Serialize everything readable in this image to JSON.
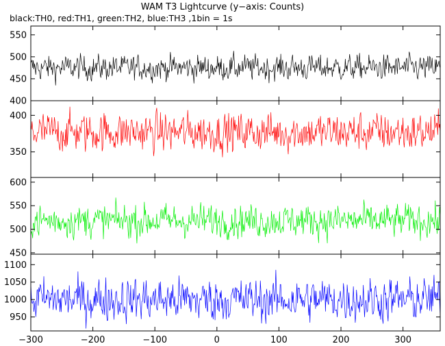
{
  "title": "WAM T3 Lightcurve (y−axis: Counts)",
  "subtitle": "black:TH0, red:TH1, green:TH2, blue:TH3 ,1bin = 1s",
  "chart_data": {
    "type": "line",
    "x_range": [
      -300,
      360
    ],
    "x_ticks": [
      -300,
      -200,
      -100,
      0,
      100,
      200,
      300
    ],
    "panels": [
      {
        "color": "#000000",
        "ylim": [
          400,
          570
        ],
        "y_ticks": [
          400,
          450,
          500,
          550
        ],
        "mean": 475,
        "spread": 14
      },
      {
        "color": "#ff0000",
        "ylim": [
          315,
          420
        ],
        "y_ticks": [
          350,
          400
        ],
        "mean": 377,
        "spread": 13
      },
      {
        "color": "#00ee00",
        "ylim": [
          447,
          610
        ],
        "y_ticks": [
          450,
          500,
          550,
          600
        ],
        "mean": 518,
        "spread": 17
      },
      {
        "color": "#0000ff",
        "ylim": [
          910,
          1130
        ],
        "y_ticks": [
          950,
          1000,
          1050,
          1100
        ],
        "mean": 1000,
        "spread": 30
      }
    ]
  }
}
